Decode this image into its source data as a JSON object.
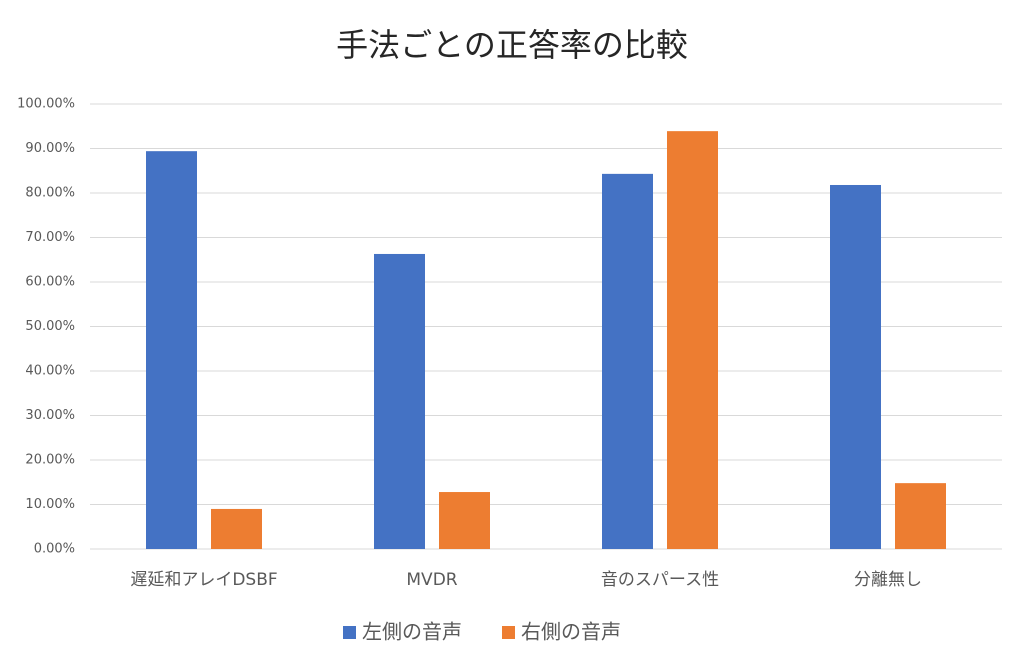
{
  "chart_data": {
    "type": "bar",
    "title": "手法ごとの正答率の比較",
    "categories": [
      "遅延和アレイDSBF",
      "MVDR",
      "音のスパース性",
      "分離無し"
    ],
    "series": [
      {
        "name": "左側の音声",
        "color": "#4472c4",
        "values": [
          89.4,
          66.3,
          84.3,
          81.8
        ]
      },
      {
        "name": "右側の音声",
        "color": "#ed7d31",
        "values": [
          9.0,
          12.8,
          93.9,
          14.8
        ]
      }
    ],
    "ylim": [
      0,
      100
    ],
    "yticks": [
      {
        "value": 0,
        "label": "0.00%"
      },
      {
        "value": 10,
        "label": "10.00%"
      },
      {
        "value": 20,
        "label": "20.00%"
      },
      {
        "value": 30,
        "label": "30.00%"
      },
      {
        "value": 40,
        "label": "40.00%"
      },
      {
        "value": 50,
        "label": "50.00%"
      },
      {
        "value": 60,
        "label": "60.00%"
      },
      {
        "value": 70,
        "label": "70.00%"
      },
      {
        "value": 80,
        "label": "80.00%"
      },
      {
        "value": 90,
        "label": "90.00%"
      },
      {
        "value": 100,
        "label": "100.00%"
      }
    ],
    "grid": true,
    "legend": "bottom"
  }
}
